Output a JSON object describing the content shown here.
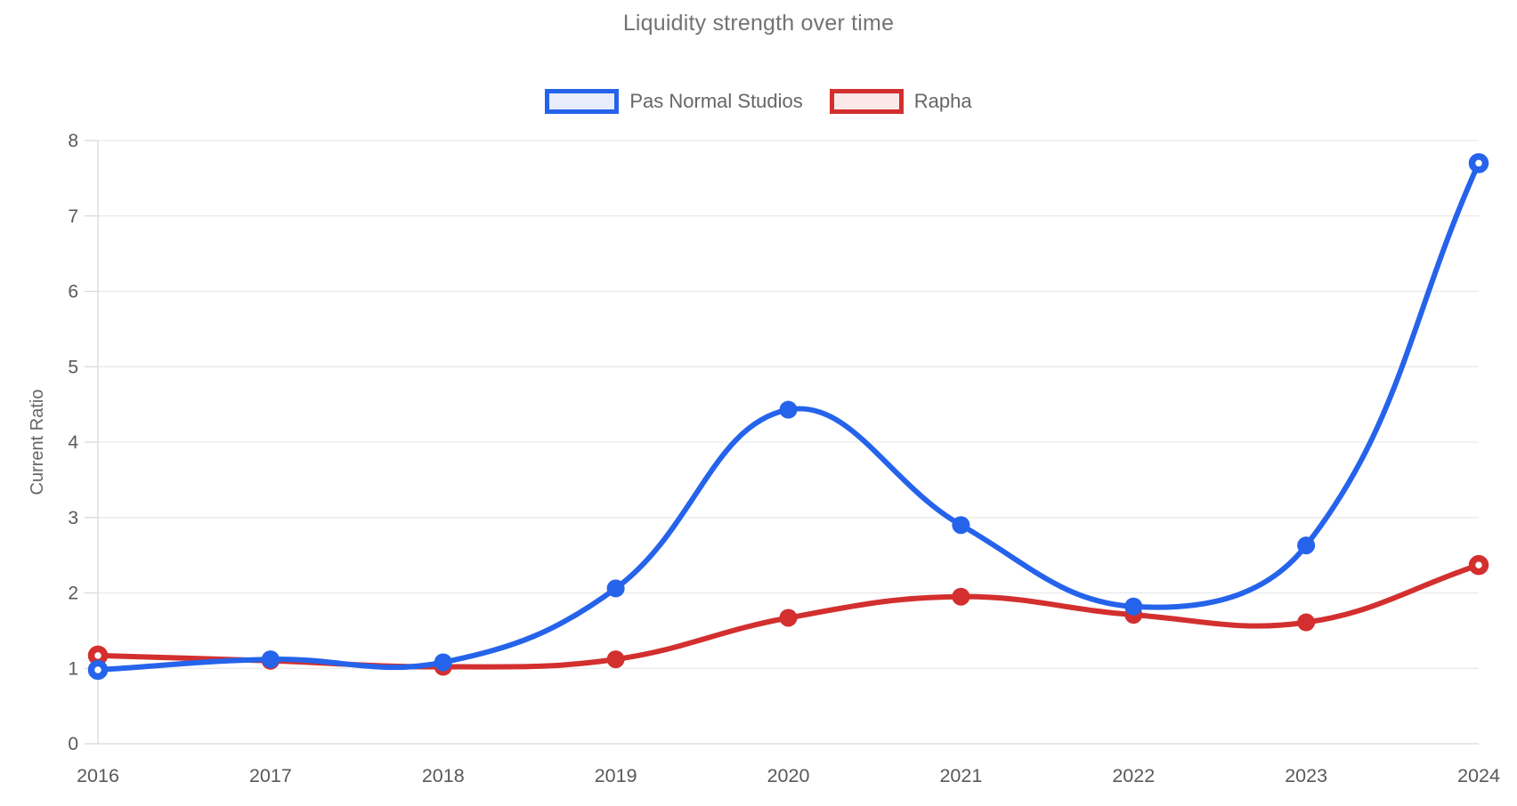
{
  "chart_data": {
    "type": "line",
    "title": "Liquidity strength over time",
    "xlabel": "",
    "ylabel": "Current Ratio",
    "categories": [
      "2016",
      "2017",
      "2018",
      "2019",
      "2020",
      "2021",
      "2022",
      "2023",
      "2024"
    ],
    "series": [
      {
        "name": "Pas Normal Studios",
        "color": "#2563EB",
        "swatch_fill": "#E8EDFC",
        "values": [
          0.98,
          1.12,
          1.08,
          2.06,
          4.43,
          2.9,
          1.82,
          2.63,
          7.7
        ]
      },
      {
        "name": "Rapha",
        "color": "#D32F2F",
        "swatch_fill": "#FBE9E9",
        "values": [
          1.17,
          1.1,
          1.02,
          1.12,
          1.67,
          1.95,
          1.71,
          1.61,
          2.37
        ]
      }
    ],
    "ylim": [
      0,
      8
    ],
    "yticks": [
      0,
      1,
      2,
      3,
      4,
      5,
      6,
      7,
      8
    ],
    "grid": "horizontal",
    "legend_position": "top",
    "line_tension": 0.4
  },
  "colors": {
    "title_text": "#737373",
    "legend_text": "#666666",
    "tick_text": "#58595B",
    "axis_title_text": "#666666",
    "gridline": "#E9E9E9",
    "axis_line": "#D9D9D9",
    "background": "#FFFFFF"
  }
}
